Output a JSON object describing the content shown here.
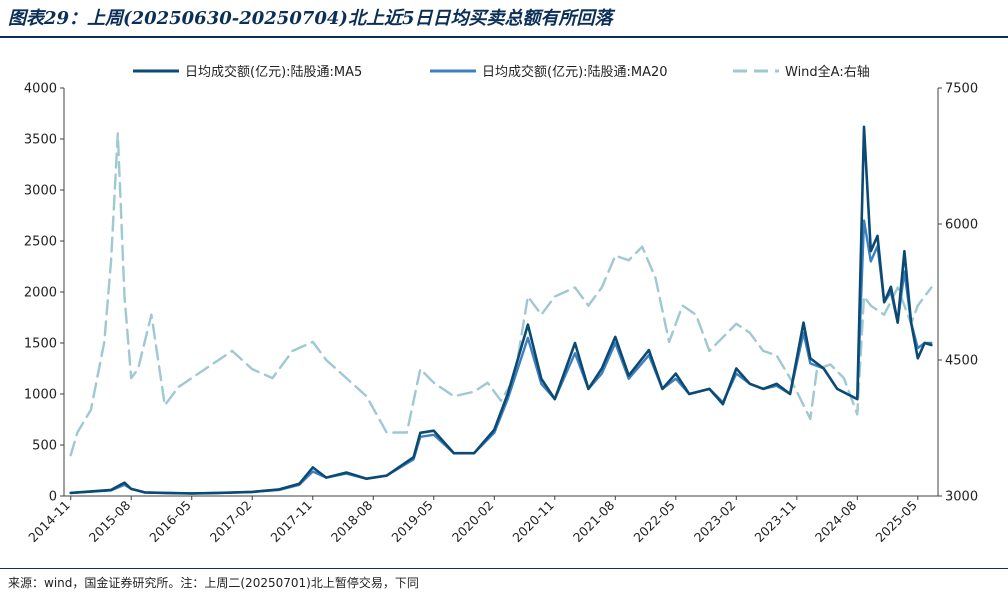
{
  "title": "图表29：上周(20250630-20250704)北上近5日日均买卖总额有所回落",
  "source_note": "来源：wind，国金证券研究所。注：上周二(20250701)北上暂停交易，下同",
  "chart_data": {
    "type": "line",
    "title": "图表29：上周(20250630-20250704)北上近5日日均买卖总额有所回落",
    "xlabel": "",
    "ylabel_left": "",
    "ylabel_right": "",
    "ylim_left": [
      0,
      4000
    ],
    "ylim_right": [
      3000,
      7500
    ],
    "yticks_left": [
      "0",
      "500",
      "1000",
      "1500",
      "2000",
      "2500",
      "3000",
      "3500",
      "4000"
    ],
    "yticks_right": [
      "3000",
      "4500",
      "6000",
      "7500"
    ],
    "x_tick_labels": [
      "2014-11",
      "2015-08",
      "2016-05",
      "2017-02",
      "2017-11",
      "2018-08",
      "2019-05",
      "2020-02",
      "2020-11",
      "2021-08",
      "2022-05",
      "2023-02",
      "2023-11",
      "2024-08",
      "2025-05"
    ],
    "legend_position": "top",
    "colors": {
      "ma5": "#0b4a73",
      "ma20": "#3d7fc1",
      "wind": "#9ec8d2",
      "axis": "#404040",
      "title": "#0b2f57"
    },
    "series": [
      {
        "name": "日均成交额(亿元):陆股通:MA5",
        "axis": "left",
        "style": "solid",
        "x": [
          "2014-11",
          "2015-02",
          "2015-05",
          "2015-07",
          "2015-08",
          "2015-10",
          "2016-01",
          "2016-05",
          "2016-09",
          "2017-02",
          "2017-06",
          "2017-09",
          "2017-11",
          "2018-01",
          "2018-04",
          "2018-07",
          "2018-10",
          "2019-02",
          "2019-03",
          "2019-05",
          "2019-08",
          "2019-11",
          "2020-02",
          "2020-04",
          "2020-07",
          "2020-09",
          "2020-11",
          "2021-02",
          "2021-04",
          "2021-06",
          "2021-08",
          "2021-10",
          "2022-01",
          "2022-03",
          "2022-05",
          "2022-07",
          "2022-10",
          "2022-12",
          "2023-02",
          "2023-04",
          "2023-06",
          "2023-08",
          "2023-10",
          "2023-12",
          "2024-01",
          "2024-03",
          "2024-05",
          "2024-08",
          "2024-09",
          "2024-10",
          "2024-11",
          "2024-12",
          "2025-01",
          "2025-02",
          "2025-03",
          "2025-04",
          "2025-05",
          "2025-06",
          "2025-07"
        ],
        "values": [
          30,
          45,
          60,
          130,
          70,
          35,
          30,
          25,
          30,
          40,
          65,
          120,
          280,
          180,
          230,
          170,
          200,
          380,
          620,
          640,
          420,
          420,
          650,
          1000,
          1680,
          1150,
          950,
          1500,
          1050,
          1250,
          1560,
          1180,
          1430,
          1050,
          1200,
          1000,
          1050,
          900,
          1250,
          1100,
          1050,
          1100,
          1000,
          1700,
          1350,
          1250,
          1050,
          950,
          3620,
          2400,
          2550,
          1900,
          2050,
          1700,
          2400,
          1700,
          1350,
          1500,
          1480
        ]
      },
      {
        "name": "日均成交额(亿元):陆股通:MA20",
        "axis": "left",
        "style": "solid",
        "x": [
          "2014-11",
          "2015-02",
          "2015-05",
          "2015-07",
          "2015-08",
          "2015-10",
          "2016-01",
          "2016-05",
          "2016-09",
          "2017-02",
          "2017-06",
          "2017-09",
          "2017-11",
          "2018-01",
          "2018-04",
          "2018-07",
          "2018-10",
          "2019-02",
          "2019-03",
          "2019-05",
          "2019-08",
          "2019-11",
          "2020-02",
          "2020-04",
          "2020-07",
          "2020-09",
          "2020-11",
          "2021-02",
          "2021-04",
          "2021-06",
          "2021-08",
          "2021-10",
          "2022-01",
          "2022-03",
          "2022-05",
          "2022-07",
          "2022-10",
          "2022-12",
          "2023-02",
          "2023-04",
          "2023-06",
          "2023-08",
          "2023-10",
          "2023-12",
          "2024-01",
          "2024-03",
          "2024-05",
          "2024-08",
          "2024-09",
          "2024-10",
          "2024-11",
          "2024-12",
          "2025-01",
          "2025-02",
          "2025-03",
          "2025-04",
          "2025-05",
          "2025-06",
          "2025-07"
        ],
        "values": [
          30,
          42,
          55,
          110,
          70,
          35,
          30,
          25,
          30,
          40,
          60,
          110,
          240,
          180,
          220,
          170,
          200,
          360,
          580,
          600,
          420,
          420,
          620,
          950,
          1550,
          1100,
          950,
          1400,
          1050,
          1200,
          1500,
          1150,
          1380,
          1050,
          1150,
          1000,
          1050,
          920,
          1200,
          1100,
          1050,
          1080,
          1000,
          1600,
          1300,
          1250,
          1050,
          950,
          2700,
          2300,
          2450,
          1900,
          2000,
          1700,
          2200,
          1700,
          1450,
          1500,
          1500
        ]
      },
      {
        "name": "Wind全A:右轴",
        "axis": "right",
        "style": "dashed",
        "x": [
          "2014-11",
          "2014-12",
          "2015-02",
          "2015-04",
          "2015-05",
          "2015-06",
          "2015-07",
          "2015-08",
          "2015-09",
          "2015-11",
          "2016-01",
          "2016-03",
          "2016-05",
          "2016-08",
          "2016-11",
          "2017-02",
          "2017-05",
          "2017-08",
          "2017-11",
          "2018-01",
          "2018-04",
          "2018-07",
          "2018-10",
          "2019-01",
          "2019-03",
          "2019-05",
          "2019-08",
          "2019-11",
          "2020-01",
          "2020-03",
          "2020-05",
          "2020-07",
          "2020-09",
          "2020-11",
          "2021-02",
          "2021-04",
          "2021-06",
          "2021-08",
          "2021-10",
          "2021-12",
          "2022-02",
          "2022-04",
          "2022-06",
          "2022-08",
          "2022-10",
          "2022-12",
          "2023-02",
          "2023-04",
          "2023-06",
          "2023-08",
          "2023-10",
          "2024-01",
          "2024-02",
          "2024-04",
          "2024-06",
          "2024-08",
          "2024-09",
          "2024-10",
          "2024-12",
          "2025-02",
          "2025-04",
          "2025-05",
          "2025-07"
        ],
        "values": [
          3450,
          3700,
          3950,
          4700,
          5600,
          7000,
          5200,
          4300,
          4400,
          5000,
          4000,
          4200,
          4300,
          4450,
          4600,
          4400,
          4300,
          4600,
          4700,
          4500,
          4300,
          4100,
          3700,
          3700,
          4400,
          4250,
          4100,
          4150,
          4250,
          4050,
          4300,
          5200,
          5000,
          5200,
          5300,
          5100,
          5300,
          5650,
          5600,
          5750,
          5400,
          4700,
          5100,
          5000,
          4600,
          4750,
          4900,
          4800,
          4600,
          4550,
          4300,
          3850,
          4400,
          4450,
          4300,
          3900,
          5200,
          5100,
          5000,
          5300,
          4900,
          5100,
          5300
        ]
      }
    ]
  }
}
